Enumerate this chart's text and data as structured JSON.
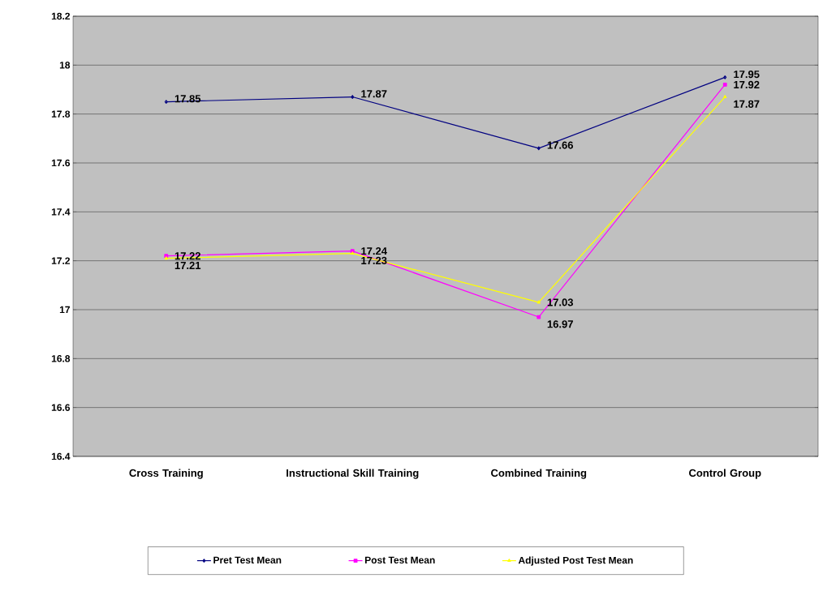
{
  "chart_data": {
    "type": "line",
    "categories": [
      "Cross Training",
      "Instructional Skill Training",
      "Combined Training",
      "Control Group"
    ],
    "series": [
      {
        "name": "Pret Test Mean",
        "color": "#000080",
        "marker": "diamond",
        "values": [
          17.85,
          17.87,
          17.66,
          17.95
        ]
      },
      {
        "name": "Post Test Mean",
        "color": "#ff00ff",
        "marker": "square",
        "values": [
          17.22,
          17.24,
          16.97,
          17.92
        ]
      },
      {
        "name": "Adjusted Post Test Mean",
        "color": "#ffff00",
        "marker": "triangle",
        "values": [
          17.21,
          17.23,
          17.03,
          17.87
        ]
      }
    ],
    "ylim": [
      16.4,
      18.2
    ],
    "yticks": [
      16.4,
      16.6,
      16.8,
      17,
      17.2,
      17.4,
      17.6,
      17.8,
      18,
      18.2
    ],
    "grid": "y",
    "legend": "bottom",
    "data_labels": true
  }
}
